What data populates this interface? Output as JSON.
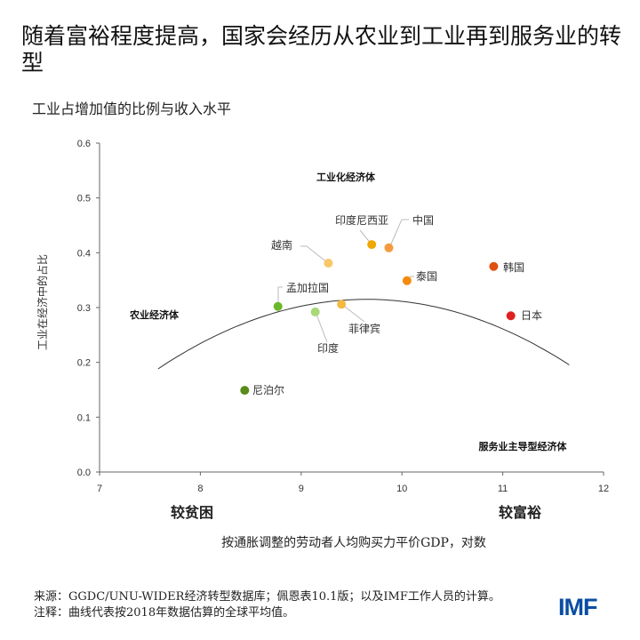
{
  "title": "随着富裕程度提高，国家会经历从农业到工业再到服务业的转型",
  "subtitle": "工业占增加值的比例与收入水平",
  "chart_data": {
    "type": "scatter",
    "xlabel": "按通胀调整的劳动者人均购买力平价GDP，对数",
    "ylabel": "工业在经济中的占比",
    "xlim": [
      7,
      12
    ],
    "ylim": [
      0,
      0.6
    ],
    "xticks": [
      "7",
      "8",
      "9",
      "10",
      "11",
      "12"
    ],
    "yticks": [
      "0.0",
      "0.1",
      "0.2",
      "0.3",
      "0.4",
      "0.5",
      "0.6"
    ],
    "x_end_labels": {
      "left": "较贫困",
      "right": "较富裕"
    },
    "annotations": [
      "工业化经济体",
      "农业经济体",
      "服务业主导型经济体"
    ],
    "points": [
      {
        "name": "尼泊尔",
        "x": 8.44,
        "y": 0.149,
        "color": "#5a8a1a"
      },
      {
        "name": "孟加拉国",
        "x": 8.77,
        "y": 0.302,
        "color": "#6ab82a"
      },
      {
        "name": "印度",
        "x": 9.14,
        "y": 0.292,
        "color": "#a8d878"
      },
      {
        "name": "菲律宾",
        "x": 9.4,
        "y": 0.306,
        "color": "#f5b942"
      },
      {
        "name": "越南",
        "x": 9.27,
        "y": 0.381,
        "color": "#f8c868"
      },
      {
        "name": "印度尼西亚",
        "x": 9.7,
        "y": 0.415,
        "color": "#f0a500"
      },
      {
        "name": "中国",
        "x": 9.87,
        "y": 0.409,
        "color": "#f59a40"
      },
      {
        "name": "泰国",
        "x": 10.05,
        "y": 0.349,
        "color": "#f58a10"
      },
      {
        "name": "韩国",
        "x": 10.91,
        "y": 0.375,
        "color": "#e05010"
      },
      {
        "name": "日本",
        "x": 11.08,
        "y": 0.285,
        "color": "#e02020"
      }
    ],
    "curve": {
      "type": "quadratic",
      "peak_x": 9.65,
      "peak_y": 0.315,
      "coef": -0.0296,
      "x_range": [
        7.58,
        11.66
      ]
    }
  },
  "footer": {
    "source": "来源：GGDC/UNU-WIDER经济转型数据库；佩恩表10.1版；以及IMF工作人员的计算。",
    "note": "注释：曲线代表按2018年数据估算的全球平均值。"
  },
  "logo": "IMF"
}
